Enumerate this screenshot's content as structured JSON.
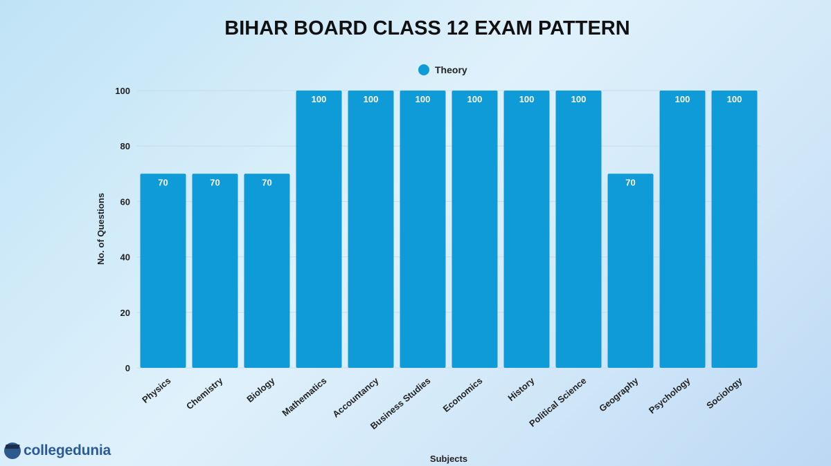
{
  "chart_data": {
    "type": "bar",
    "title": "BIHAR BOARD CLASS 12 EXAM PATTERN",
    "xlabel": "Subjects",
    "ylabel": "No. of Questions",
    "ylim": [
      0,
      100
    ],
    "yticks": [
      0,
      20,
      40,
      60,
      80,
      100
    ],
    "grid": true,
    "legend_position": "top-center",
    "categories": [
      "Physics",
      "Chemistry",
      "Biology",
      "Mathematics",
      "Accountancy",
      "Business Studies",
      "Economics",
      "History",
      "Political Science",
      "Geography",
      "Psychology",
      "Sociology"
    ],
    "series": [
      {
        "name": "Theory",
        "color": "#0f9bd7",
        "values": [
          70,
          70,
          70,
          100,
          100,
          100,
          100,
          100,
          100,
          70,
          100,
          100
        ]
      }
    ]
  },
  "brand": {
    "logo_text": "collegedunia"
  }
}
